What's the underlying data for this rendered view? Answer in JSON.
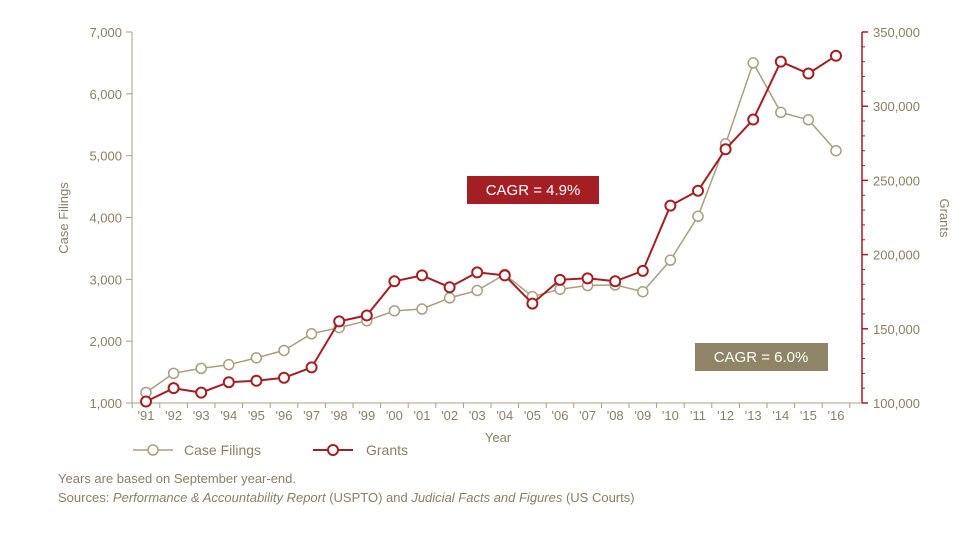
{
  "chart_data": {
    "type": "line",
    "xlabel": "Year",
    "y_left_label": "Case Filings",
    "y_right_label": "Grants",
    "y_left_lim": [
      1000,
      7000
    ],
    "y_right_lim": [
      100000,
      350000
    ],
    "y_left_ticks": [
      "7,000",
      "6,000",
      "5,000",
      "4,000",
      "3,000",
      "2,000",
      "1,000"
    ],
    "y_right_ticks": [
      "350,000",
      "300,000",
      "250,000",
      "200,000",
      "150,000",
      "100,000"
    ],
    "categories": [
      "'91",
      "'92",
      "'93",
      "'94",
      "'95",
      "'96",
      "'97",
      "'98",
      "'99",
      "'00",
      "'01",
      "'02",
      "'03",
      "'04",
      "'05",
      "'06",
      "'07",
      "'08",
      "'09",
      "'10",
      "'11",
      "'12",
      "'13",
      "'14",
      "'15",
      "'16"
    ],
    "series": [
      {
        "name": "Case Filings",
        "axis": "left",
        "color": "#a89f80",
        "values": [
          1170,
          1480,
          1560,
          1620,
          1730,
          1850,
          2120,
          2220,
          2330,
          2490,
          2520,
          2700,
          2820,
          3080,
          2720,
          2840,
          2900,
          2910,
          2800,
          3310,
          4020,
          5190,
          6500,
          5700,
          5580,
          5080
        ]
      },
      {
        "name": "Grants",
        "axis": "right",
        "color": "#a31f24",
        "values": [
          101000,
          110000,
          107000,
          114000,
          115000,
          117000,
          124000,
          155000,
          159000,
          182000,
          186000,
          178000,
          188000,
          186000,
          167000,
          183000,
          184000,
          182000,
          189000,
          233000,
          243000,
          271000,
          291000,
          330000,
          322000,
          334000
        ]
      }
    ],
    "annotations": [
      {
        "text": "CAGR = 4.9%",
        "color": "#a31f24"
      },
      {
        "text": "CAGR = 6.0%",
        "color": "#8f8566"
      }
    ],
    "grid": false,
    "legend_position": "bottom-left"
  },
  "footnotes": {
    "line1": "Years are based on September year-end.",
    "sources_prefix": "Sources: ",
    "source1": "Performance & Accountability Report",
    "source1_org": " (USPTO) and ",
    "source2": "Judicial Facts and Figures",
    "source2_org": " (US Courts)"
  }
}
